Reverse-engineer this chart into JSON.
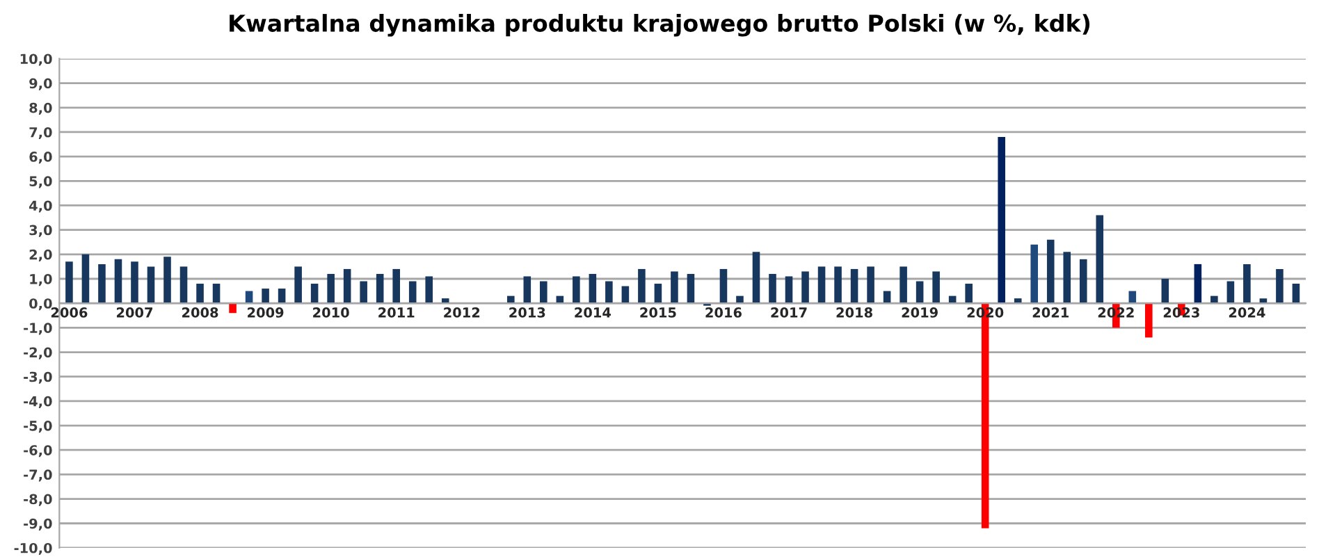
{
  "chart_data": {
    "type": "bar",
    "title": "Kwartalna dynamika produktu krajowego brutto Polski (w %, kdk)",
    "categories": [
      "2006",
      null,
      null,
      null,
      "2007",
      null,
      null,
      null,
      "2008",
      null,
      null,
      null,
      "2009",
      null,
      null,
      null,
      "2010",
      null,
      null,
      null,
      "2011",
      null,
      null,
      null,
      "2012",
      null,
      null,
      null,
      "2013",
      null,
      null,
      null,
      "2014",
      null,
      null,
      null,
      "2015",
      null,
      null,
      null,
      "2016",
      null,
      null,
      null,
      "2017",
      null,
      null,
      null,
      "2018",
      null,
      null,
      null,
      "2019",
      null,
      null,
      null,
      "2020",
      null,
      null,
      null,
      "2021",
      null,
      null,
      null,
      "2022",
      null,
      null,
      null,
      "2023",
      null,
      null,
      null,
      "2024",
      null,
      null,
      null
    ],
    "values": [
      1.7,
      2.0,
      1.6,
      1.8,
      1.7,
      1.5,
      1.9,
      1.5,
      0.8,
      0.8,
      -0.4,
      0.5,
      0.6,
      0.6,
      1.5,
      0.8,
      1.2,
      1.4,
      0.9,
      1.2,
      1.4,
      0.9,
      1.1,
      0.2,
      null,
      null,
      null,
      0.3,
      1.1,
      0.9,
      0.3,
      1.1,
      1.2,
      0.9,
      0.7,
      1.4,
      0.8,
      1.3,
      1.2,
      -0.1,
      1.4,
      0.3,
      2.1,
      1.2,
      1.1,
      1.3,
      1.5,
      1.5,
      1.4,
      1.5,
      0.5,
      1.5,
      0.9,
      1.3,
      0.3,
      0.8,
      -9.2,
      6.8,
      0.2,
      2.4,
      2.6,
      2.1,
      1.8,
      3.6,
      -1.0,
      0.5,
      -1.4,
      1.0,
      -0.5,
      1.6,
      0.3,
      0.9,
      1.6,
      0.2,
      1.4,
      0.8
    ],
    "colors": [
      "#17375e",
      "#17375e",
      "#17375e",
      "#17375e",
      "#17375e",
      "#17375e",
      "#17375e",
      "#17375e",
      "#17375e",
      "#17375e",
      "#ff0000",
      "#1f497d",
      "#17375e",
      "#17375e",
      "#17375e",
      "#17375e",
      "#17375e",
      "#17375e",
      "#17375e",
      "#17375e",
      "#17375e",
      "#17375e",
      "#17375e",
      "#17375e",
      "#17375e",
      "#17375e",
      "#17375e",
      "#17375e",
      "#17375e",
      "#17375e",
      "#17375e",
      "#17375e",
      "#17375e",
      "#17375e",
      "#17375e",
      "#17375e",
      "#17375e",
      "#17375e",
      "#17375e",
      "#17375e",
      "#17375e",
      "#17375e",
      "#17375e",
      "#17375e",
      "#17375e",
      "#17375e",
      "#17375e",
      "#17375e",
      "#17375e",
      "#17375e",
      "#17375e",
      "#17375e",
      "#17375e",
      "#17375e",
      "#17375e",
      "#17375e",
      "#ff0000",
      "#002060",
      "#17375e",
      "#1f497d",
      "#17375e",
      "#17375e",
      "#17375e",
      "#17375e",
      "#ff0000",
      "#1f497d",
      "#ff0000",
      "#17375e",
      "#ff0000",
      "#002060",
      "#17375e",
      "#17375e",
      "#17375e",
      "#17375e",
      "#17375e",
      "#17375e"
    ],
    "ylim": [
      -10,
      10
    ],
    "yticks": [
      {
        "value": 10,
        "label": "10,0"
      },
      {
        "value": 9,
        "label": "9,0"
      },
      {
        "value": 8,
        "label": "8,0"
      },
      {
        "value": 7,
        "label": "7,0"
      },
      {
        "value": 6,
        "label": "6,0"
      },
      {
        "value": 5,
        "label": "5,0"
      },
      {
        "value": 4,
        "label": "4,0"
      },
      {
        "value": 3,
        "label": "3,0"
      },
      {
        "value": 2,
        "label": "2,0"
      },
      {
        "value": 1,
        "label": "1,0"
      },
      {
        "value": 0,
        "label": "0,0"
      },
      {
        "value": -1,
        "label": "-1,0"
      },
      {
        "value": -2,
        "label": "-2,0"
      },
      {
        "value": -3,
        "label": "-3,0"
      },
      {
        "value": -4,
        "label": "-4,0"
      },
      {
        "value": -5,
        "label": "-5,0"
      },
      {
        "value": -6,
        "label": "-6,0"
      },
      {
        "value": -7,
        "label": "-7,0"
      },
      {
        "value": -8,
        "label": "-8,0"
      },
      {
        "value": -9,
        "label": "-9,0"
      },
      {
        "value": -10,
        "label": "-10,0"
      }
    ],
    "grid": "y"
  }
}
